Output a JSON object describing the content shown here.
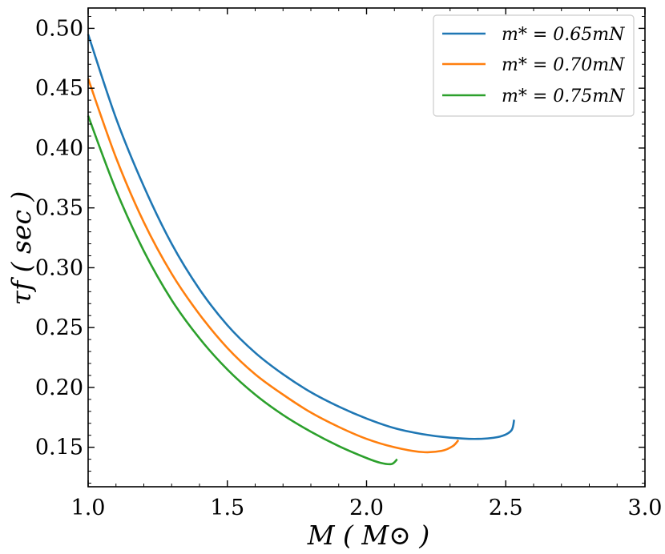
{
  "chart_data": {
    "type": "line",
    "title": "",
    "xlabel": "M ( M⊙ )",
    "ylabel": "τf ( sec )",
    "xlim": [
      1.0,
      3.0
    ],
    "ylim": [
      0.117,
      0.517
    ],
    "x_ticks": [
      1.0,
      1.5,
      2.0,
      2.5,
      3.0
    ],
    "x_tick_labels": [
      "1.0",
      "1.5",
      "2.0",
      "2.5",
      "3.0"
    ],
    "y_ticks": [
      0.15,
      0.2,
      0.25,
      0.3,
      0.35,
      0.4,
      0.45,
      0.5
    ],
    "y_tick_labels": [
      "0.15",
      "0.20",
      "0.25",
      "0.30",
      "0.35",
      "0.40",
      "0.45",
      "0.50"
    ],
    "grid": false,
    "legend_position": "top-right",
    "series": [
      {
        "name": "m* = 0.65mN",
        "color": "#1f77b4",
        "points": [
          [
            1.0,
            0.495
          ],
          [
            1.1,
            0.425
          ],
          [
            1.2,
            0.368
          ],
          [
            1.3,
            0.32
          ],
          [
            1.4,
            0.282
          ],
          [
            1.5,
            0.252
          ],
          [
            1.6,
            0.229
          ],
          [
            1.7,
            0.211
          ],
          [
            1.8,
            0.196
          ],
          [
            1.9,
            0.184
          ],
          [
            2.0,
            0.174
          ],
          [
            2.1,
            0.166
          ],
          [
            2.2,
            0.161
          ],
          [
            2.3,
            0.158
          ],
          [
            2.4,
            0.157
          ],
          [
            2.48,
            0.159
          ],
          [
            2.52,
            0.164
          ],
          [
            2.53,
            0.173
          ]
        ]
      },
      {
        "name": "m* = 0.70mN",
        "color": "#ff7f0e",
        "points": [
          [
            1.0,
            0.458
          ],
          [
            1.1,
            0.392
          ],
          [
            1.2,
            0.338
          ],
          [
            1.3,
            0.295
          ],
          [
            1.4,
            0.261
          ],
          [
            1.5,
            0.233
          ],
          [
            1.6,
            0.211
          ],
          [
            1.7,
            0.194
          ],
          [
            1.8,
            0.179
          ],
          [
            1.9,
            0.167
          ],
          [
            2.0,
            0.157
          ],
          [
            2.1,
            0.15
          ],
          [
            2.2,
            0.146
          ],
          [
            2.27,
            0.147
          ],
          [
            2.31,
            0.151
          ],
          [
            2.33,
            0.156
          ]
        ]
      },
      {
        "name": "m* = 0.75mN",
        "color": "#2ca02c",
        "points": [
          [
            1.0,
            0.427
          ],
          [
            1.1,
            0.365
          ],
          [
            1.2,
            0.314
          ],
          [
            1.3,
            0.273
          ],
          [
            1.4,
            0.241
          ],
          [
            1.5,
            0.215
          ],
          [
            1.6,
            0.194
          ],
          [
            1.7,
            0.177
          ],
          [
            1.8,
            0.163
          ],
          [
            1.9,
            0.151
          ],
          [
            2.0,
            0.141
          ],
          [
            2.05,
            0.137
          ],
          [
            2.09,
            0.136
          ],
          [
            2.11,
            0.14
          ]
        ]
      }
    ]
  }
}
